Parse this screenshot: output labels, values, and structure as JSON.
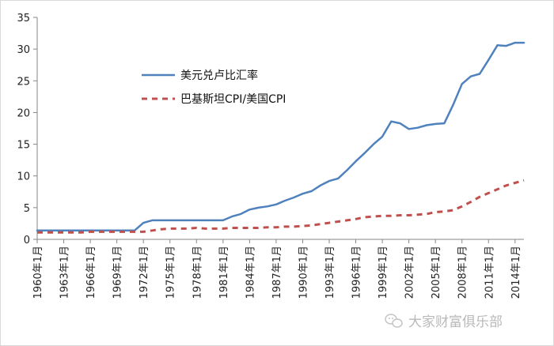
{
  "chart_data": {
    "type": "line",
    "title": "",
    "xlabel": "",
    "ylabel": "",
    "ylim": [
      0,
      35
    ],
    "yticks": [
      0,
      5,
      10,
      15,
      20,
      25,
      30,
      35
    ],
    "x_tick_labels": [
      "1960年1月",
      "1963年1月",
      "1966年1月",
      "1969年1月",
      "1972年1月",
      "1975年1月",
      "1978年1月",
      "1981年1月",
      "1984年1月",
      "1987年1月",
      "1990年1月",
      "1993年1月",
      "1996年1月",
      "1999年1月",
      "2002年1月",
      "2005年1月",
      "2008年1月",
      "2011年1月",
      "2014年1月"
    ],
    "x": [
      1960,
      1961,
      1962,
      1963,
      1964,
      1965,
      1966,
      1967,
      1968,
      1969,
      1970,
      1971,
      1972,
      1973,
      1974,
      1975,
      1976,
      1977,
      1978,
      1979,
      1980,
      1981,
      1982,
      1983,
      1984,
      1985,
      1986,
      1987,
      1988,
      1989,
      1990,
      1991,
      1992,
      1993,
      1994,
      1995,
      1996,
      1997,
      1998,
      1999,
      2000,
      2001,
      2002,
      2003,
      2004,
      2005,
      2006,
      2007,
      2008,
      2009,
      2010,
      2011,
      2012,
      2013,
      2014,
      2015
    ],
    "grid": false,
    "legend_position": "upper-left, inside plot",
    "series": [
      {
        "name": "美元兑卢比汇率",
        "color": "#4f81bd",
        "style": "solid",
        "values": [
          1.4,
          1.4,
          1.4,
          1.4,
          1.4,
          1.4,
          1.4,
          1.4,
          1.4,
          1.4,
          1.4,
          1.4,
          2.6,
          3.0,
          3.0,
          3.0,
          3.0,
          3.0,
          3.0,
          3.0,
          3.0,
          3.0,
          3.6,
          4.0,
          4.7,
          5.0,
          5.2,
          5.5,
          6.1,
          6.6,
          7.2,
          7.6,
          8.5,
          9.2,
          9.6,
          10.9,
          12.3,
          13.6,
          15.0,
          16.2,
          18.6,
          18.3,
          17.4,
          17.6,
          18.0,
          18.2,
          18.3,
          21.2,
          24.5,
          25.7,
          26.1,
          28.3,
          30.6,
          30.5,
          31.0,
          31.0
        ]
      },
      {
        "name": "巴基斯坦CPI/美国CPI",
        "color": "#c0504d",
        "style": "dashed",
        "values": [
          1.1,
          1.1,
          1.1,
          1.1,
          1.1,
          1.1,
          1.2,
          1.2,
          1.2,
          1.2,
          1.2,
          1.2,
          1.2,
          1.4,
          1.6,
          1.7,
          1.7,
          1.7,
          1.8,
          1.7,
          1.7,
          1.7,
          1.8,
          1.8,
          1.8,
          1.8,
          1.9,
          1.9,
          2.0,
          2.0,
          2.1,
          2.2,
          2.4,
          2.6,
          2.8,
          3.0,
          3.2,
          3.5,
          3.6,
          3.7,
          3.7,
          3.8,
          3.8,
          3.9,
          4.0,
          4.3,
          4.4,
          4.6,
          5.2,
          5.9,
          6.7,
          7.3,
          7.9,
          8.5,
          8.9,
          9.3
        ]
      }
    ]
  },
  "watermark": {
    "text": "大家财富俱乐部",
    "icon": "wechat-icon"
  }
}
